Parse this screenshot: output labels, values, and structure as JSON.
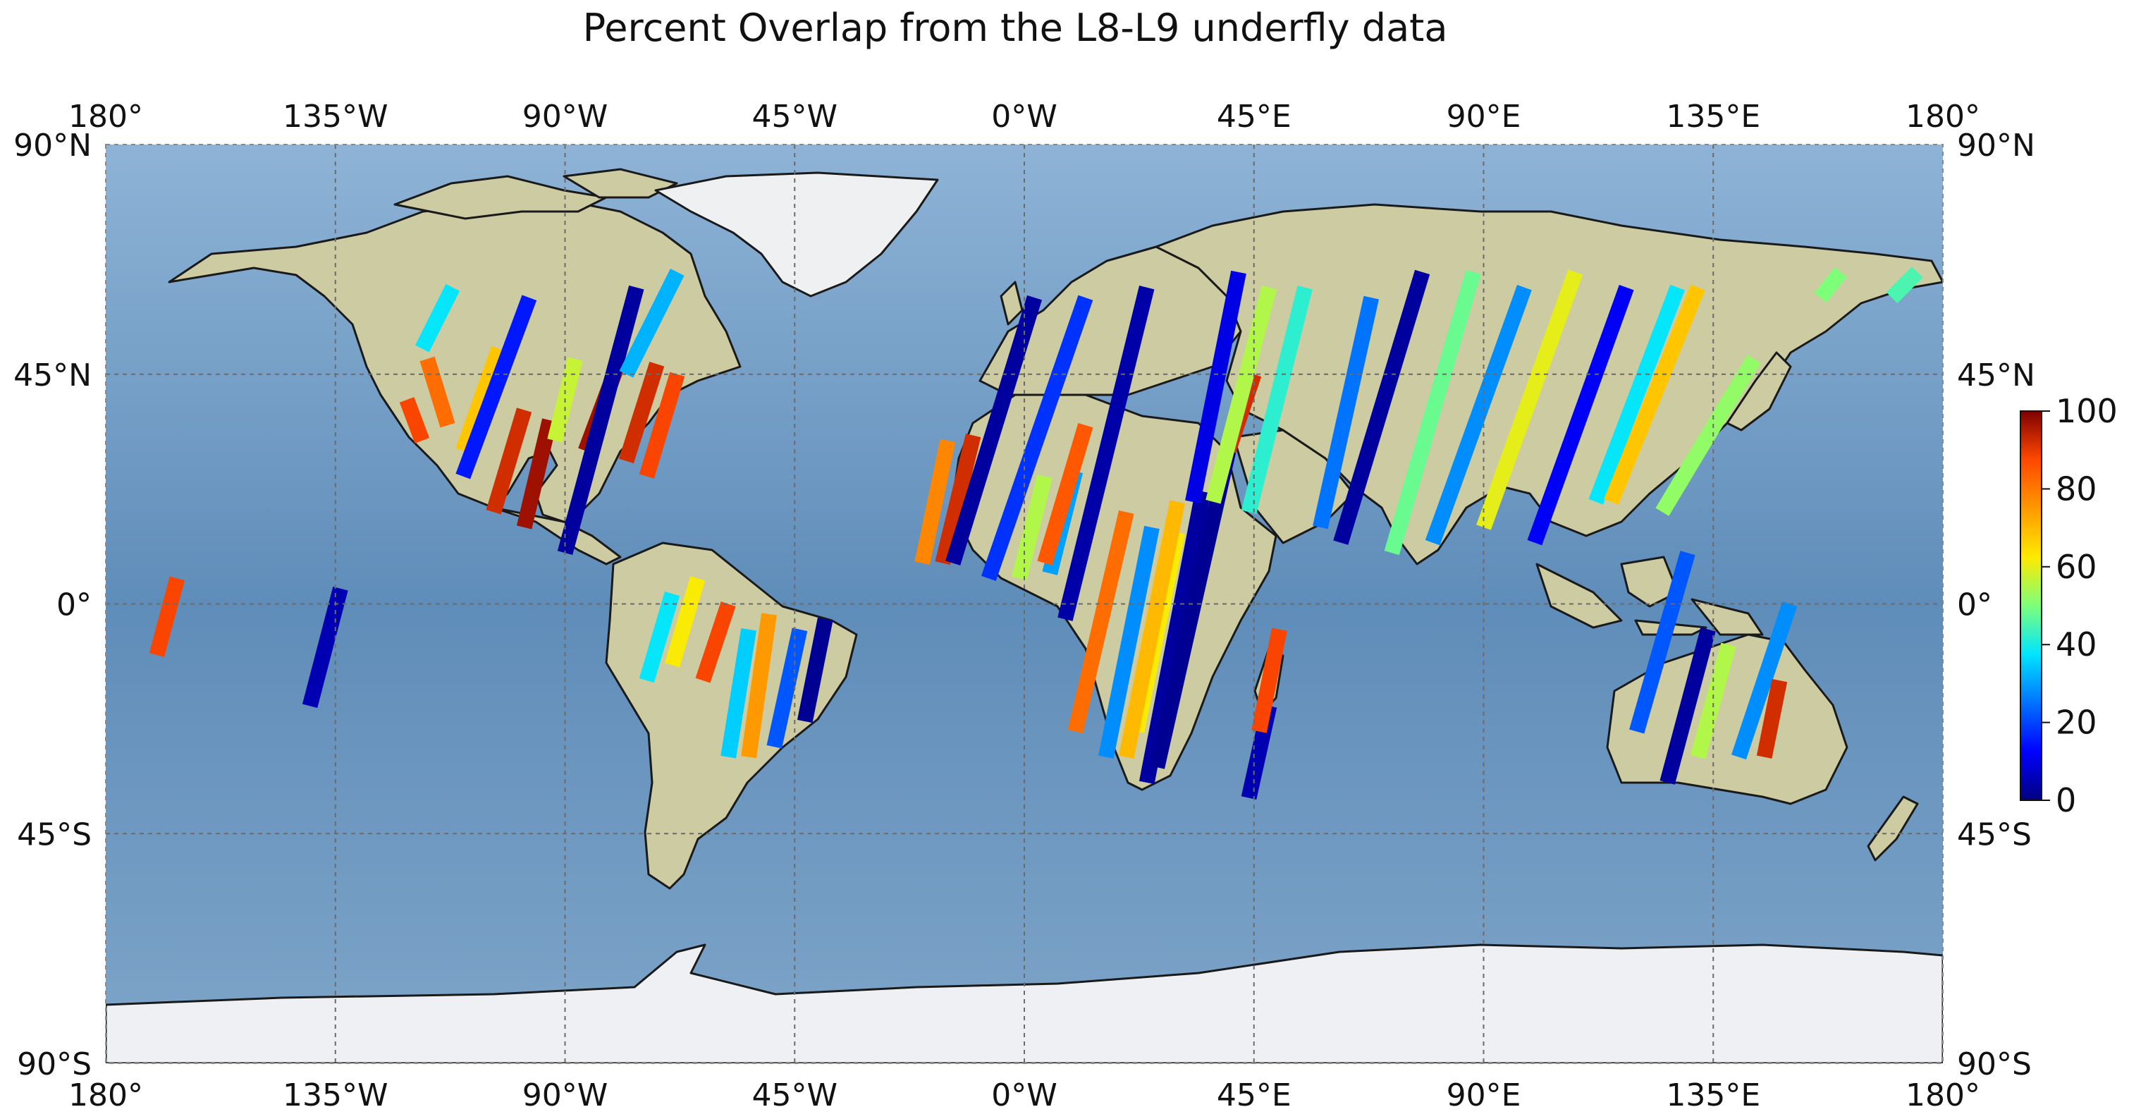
{
  "title": "Percent Overlap from the L8-L9 underfly data",
  "map": {
    "projection": "PlateCarree",
    "lon_range": [
      -180,
      180
    ],
    "lat_range": [
      -90,
      90
    ],
    "background": "stock image (land / ocean)",
    "coastlines": true,
    "gridlines": "dashed grey",
    "top_lon_ticks": [
      "180°",
      "135°W",
      "90°W",
      "45°W",
      "0°W",
      "45°E",
      "90°E",
      "135°E",
      "180°"
    ],
    "bottom_lon_ticks": [
      "180°",
      "135°W",
      "90°W",
      "45°W",
      "0°W",
      "45°E",
      "90°E",
      "135°E",
      "180°"
    ],
    "left_lat_ticks": [
      "90°N",
      "45°N",
      "0°",
      "45°S",
      "90°S"
    ],
    "right_lat_ticks": [
      "90°N",
      "45°N",
      "0°",
      "45°S",
      "90°S"
    ]
  },
  "colorbar": {
    "cmap": "jet",
    "range": [
      0,
      100
    ],
    "ticks": [
      "0",
      "20",
      "40",
      "60",
      "80",
      "100"
    ],
    "stops": [
      "#00007f",
      "#0000ff",
      "#00e5ff",
      "#7dff7a",
      "#ffea00",
      "#ff4800",
      "#800000"
    ]
  },
  "chart_data": {
    "type": "heatmap",
    "description_units": "lat/lon in degrees, value = percent overlap",
    "swaths": [
      {
        "lat1": -10,
        "lon1": -170,
        "lat2": 5,
        "lon2": -166,
        "value": 88
      },
      {
        "lat1": -20,
        "lon1": -140,
        "lat2": 3,
        "lon2": -134,
        "value": 5
      },
      {
        "lat1": 40,
        "lon1": -121,
        "lat2": 32,
        "lon2": -118,
        "value": 88
      },
      {
        "lat1": 48,
        "lon1": -117,
        "lat2": 35,
        "lon2": -113,
        "value": 82
      },
      {
        "lat1": 62,
        "lon1": -112,
        "lat2": 50,
        "lon2": -118,
        "value": 38
      },
      {
        "lat1": 50,
        "lon1": -103,
        "lat2": 30,
        "lon2": -110,
        "value": 68
      },
      {
        "lat1": 60,
        "lon1": -97,
        "lat2": 25,
        "lon2": -110,
        "value": 15
      },
      {
        "lat1": 38,
        "lon1": -98,
        "lat2": 18,
        "lon2": -104,
        "value": 92
      },
      {
        "lat1": 36,
        "lon1": -93,
        "lat2": 15,
        "lon2": -98,
        "value": 97
      },
      {
        "lat1": 48,
        "lon1": -88,
        "lat2": 32,
        "lon2": -92,
        "value": 57
      },
      {
        "lat1": 46,
        "lon1": -80,
        "lat2": 30,
        "lon2": -86,
        "value": 97
      },
      {
        "lat1": 62,
        "lon1": -76,
        "lat2": 10,
        "lon2": -90,
        "value": 3
      },
      {
        "lat1": 47,
        "lon1": -72,
        "lat2": 28,
        "lon2": -78,
        "value": 92
      },
      {
        "lat1": 45,
        "lon1": -68,
        "lat2": 25,
        "lon2": -74,
        "value": 88
      },
      {
        "lat1": 65,
        "lon1": -68,
        "lat2": 45,
        "lon2": -78,
        "value": 32
      },
      {
        "lat1": 2,
        "lon1": -69,
        "lat2": -15,
        "lon2": -74,
        "value": 38
      },
      {
        "lat1": 5,
        "lon1": -64,
        "lat2": -12,
        "lon2": -69,
        "value": 62
      },
      {
        "lat1": 0,
        "lon1": -58,
        "lat2": -15,
        "lon2": -63,
        "value": 88
      },
      {
        "lat1": -5,
        "lon1": -54,
        "lat2": -30,
        "lon2": -58,
        "value": 35
      },
      {
        "lat1": -2,
        "lon1": -50,
        "lat2": -30,
        "lon2": -54,
        "value": 75
      },
      {
        "lat1": -5,
        "lon1": -44,
        "lat2": -28,
        "lon2": -49,
        "value": 22
      },
      {
        "lat1": -3,
        "lon1": -39,
        "lat2": -23,
        "lon2": -43,
        "value": 2
      },
      {
        "lat1": 32,
        "lon1": -15,
        "lat2": 8,
        "lon2": -20,
        "value": 78
      },
      {
        "lat1": 33,
        "lon1": -10,
        "lat2": 8,
        "lon2": -16,
        "value": 92
      },
      {
        "lat1": 60,
        "lon1": 2,
        "lat2": 8,
        "lon2": -14,
        "value": 3
      },
      {
        "lat1": 60,
        "lon1": 12,
        "lat2": 5,
        "lon2": -7,
        "value": 18
      },
      {
        "lat1": 25,
        "lon1": 4,
        "lat2": 5,
        "lon2": -1,
        "value": 55
      },
      {
        "lat1": 26,
        "lon1": 10,
        "lat2": 6,
        "lon2": 5,
        "value": 30
      },
      {
        "lat1": 35,
        "lon1": 12,
        "lat2": 8,
        "lon2": 4,
        "value": 85
      },
      {
        "lat1": 62,
        "lon1": 24,
        "lat2": -3,
        "lon2": 8,
        "value": 4
      },
      {
        "lat1": 18,
        "lon1": 20,
        "lat2": -25,
        "lon2": 10,
        "value": 82
      },
      {
        "lat1": 15,
        "lon1": 25,
        "lat2": -30,
        "lon2": 16,
        "value": 28
      },
      {
        "lat1": 14,
        "lon1": 30,
        "lat2": -25,
        "lon2": 22,
        "value": 62
      },
      {
        "lat1": 22,
        "lon1": 35,
        "lat2": -35,
        "lon2": 24,
        "value": 3
      },
      {
        "lat1": 30,
        "lon1": 40,
        "lat2": -32,
        "lon2": 26,
        "value": 2
      },
      {
        "lat1": 20,
        "lon1": 30,
        "lat2": -30,
        "lon2": 20,
        "value": 70
      },
      {
        "lat1": 45,
        "lon1": 45,
        "lat2": 30,
        "lon2": 40,
        "value": 92
      },
      {
        "lat1": 65,
        "lon1": 42,
        "lat2": 20,
        "lon2": 33,
        "value": 10
      },
      {
        "lat1": 62,
        "lon1": 48,
        "lat2": 20,
        "lon2": 37,
        "value": 55
      },
      {
        "lat1": 62,
        "lon1": 55,
        "lat2": 18,
        "lon2": 44,
        "value": 42
      },
      {
        "lat1": -20,
        "lon1": 48,
        "lat2": -38,
        "lon2": 44,
        "value": 5
      },
      {
        "lat1": -5,
        "lon1": 50,
        "lat2": -25,
        "lon2": 46,
        "value": 88
      },
      {
        "lat1": 60,
        "lon1": 68,
        "lat2": 15,
        "lon2": 58,
        "value": 25
      },
      {
        "lat1": 65,
        "lon1": 78,
        "lat2": 12,
        "lon2": 62,
        "value": 3
      },
      {
        "lat1": 65,
        "lon1": 88,
        "lat2": 10,
        "lon2": 72,
        "value": 48
      },
      {
        "lat1": 62,
        "lon1": 98,
        "lat2": 12,
        "lon2": 80,
        "value": 28
      },
      {
        "lat1": 65,
        "lon1": 108,
        "lat2": 15,
        "lon2": 90,
        "value": 60
      },
      {
        "lat1": 62,
        "lon1": 118,
        "lat2": 12,
        "lon2": 100,
        "value": 12
      },
      {
        "lat1": 62,
        "lon1": 128,
        "lat2": 20,
        "lon2": 112,
        "value": 38
      },
      {
        "lat1": 62,
        "lon1": 132,
        "lat2": 20,
        "lon2": 115,
        "value": 68
      },
      {
        "lat1": 48,
        "lon1": 143,
        "lat2": 18,
        "lon2": 125,
        "value": 52
      },
      {
        "lat1": 10,
        "lon1": 130,
        "lat2": -25,
        "lon2": 120,
        "value": 22
      },
      {
        "lat1": -5,
        "lon1": 134,
        "lat2": -35,
        "lon2": 126,
        "value": 3
      },
      {
        "lat1": -8,
        "lon1": 138,
        "lat2": -30,
        "lon2": 132,
        "value": 55
      },
      {
        "lat1": 0,
        "lon1": 150,
        "lat2": -30,
        "lon2": 140,
        "value": 28
      },
      {
        "lat1": -15,
        "lon1": 148,
        "lat2": -30,
        "lon2": 145,
        "value": 92
      },
      {
        "lat1": 65,
        "lon1": 175,
        "lat2": 60,
        "lon2": 170,
        "value": 45
      },
      {
        "lat1": 65,
        "lon1": 160,
        "lat2": 60,
        "lon2": 156,
        "value": 50
      }
    ]
  }
}
